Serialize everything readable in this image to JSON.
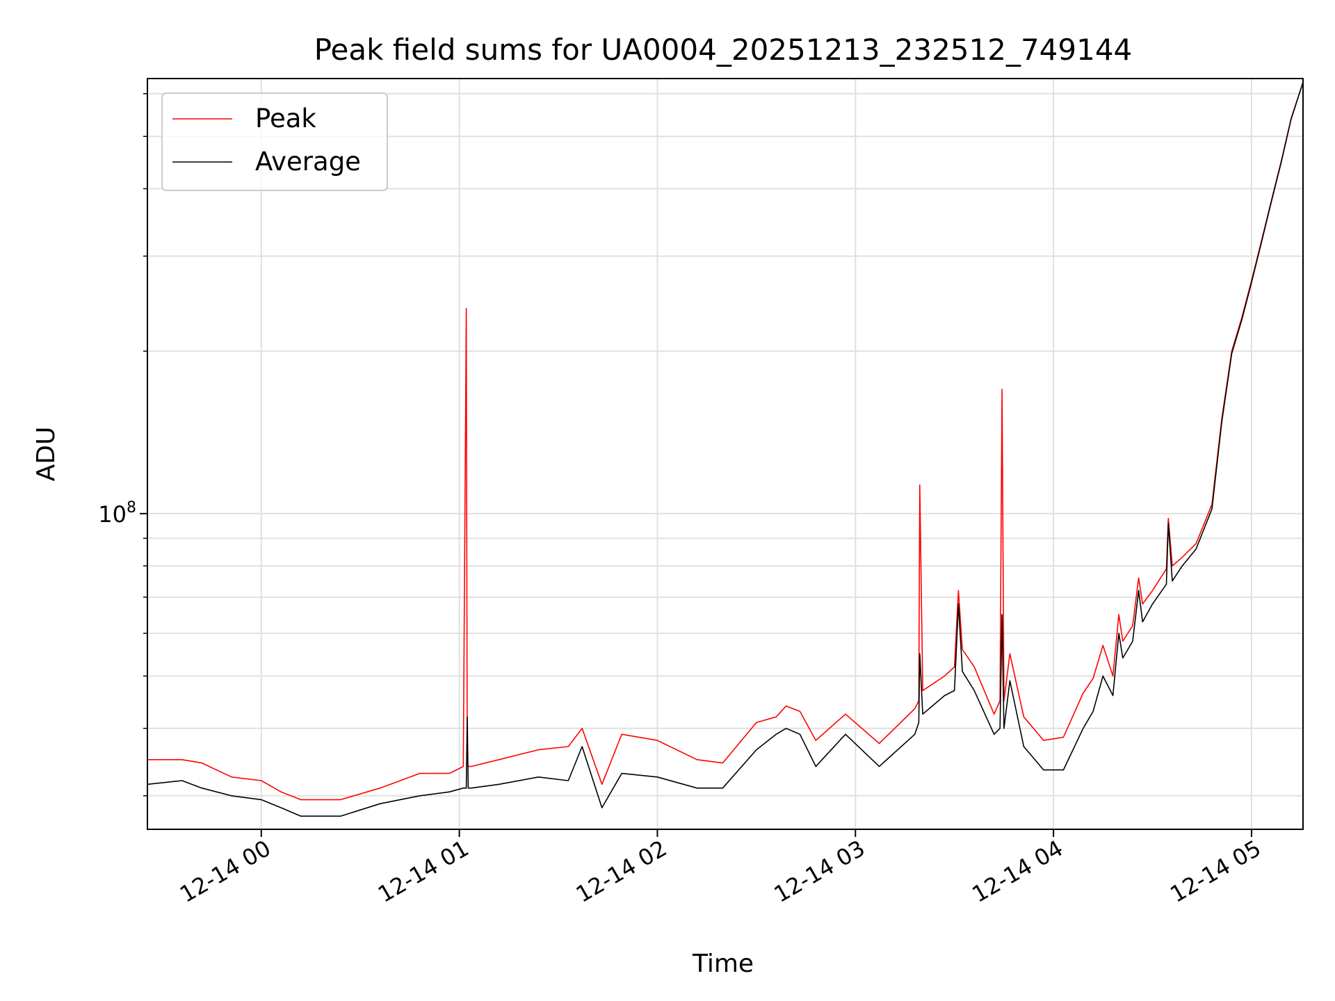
{
  "chart_data": {
    "type": "line",
    "title": "Peak field sums for UA0004_20251213_232512_749144",
    "xlabel": "Time",
    "ylabel": "ADU",
    "yscale": "log",
    "ylim": [
      26000000,
      640000000
    ],
    "xlim_hours_from_midnight": [
      -0.575,
      5.26
    ],
    "x_ticks": [
      {
        "hour": 0,
        "label": "12-14 00"
      },
      {
        "hour": 1,
        "label": "12-14 01"
      },
      {
        "hour": 2,
        "label": "12-14 02"
      },
      {
        "hour": 3,
        "label": "12-14 03"
      },
      {
        "hour": 4,
        "label": "12-14 04"
      },
      {
        "hour": 5,
        "label": "12-14 05"
      }
    ],
    "y_major_ticks": [
      {
        "value": 100000000,
        "base": "10",
        "exp": "8"
      }
    ],
    "y_minor_ticks": [
      30000000,
      40000000,
      50000000,
      60000000,
      70000000,
      80000000,
      90000000,
      200000000,
      300000000,
      400000000,
      500000000,
      600000000
    ],
    "grid": true,
    "legend_position": "upper-left",
    "series": [
      {
        "name": "Peak",
        "color": "#ff0000",
        "x_hours": [
          -0.575,
          -0.4,
          -0.3,
          -0.15,
          0.0,
          0.1,
          0.2,
          0.4,
          0.6,
          0.8,
          0.95,
          1.02,
          1.035,
          1.04,
          1.045,
          1.06,
          1.2,
          1.4,
          1.55,
          1.62,
          1.72,
          1.82,
          2.0,
          2.2,
          2.33,
          2.5,
          2.6,
          2.65,
          2.72,
          2.8,
          2.95,
          3.12,
          3.3,
          3.32,
          3.325,
          3.34,
          3.45,
          3.5,
          3.52,
          3.54,
          3.6,
          3.7,
          3.73,
          3.74,
          3.75,
          3.78,
          3.85,
          3.95,
          4.05,
          4.15,
          4.2,
          4.25,
          4.3,
          4.33,
          4.35,
          4.4,
          4.43,
          4.45,
          4.5,
          4.57,
          4.58,
          4.6,
          4.65,
          4.72,
          4.8,
          4.85,
          4.9,
          4.95,
          5.0,
          5.05,
          5.1,
          5.15,
          5.2,
          5.26
        ],
        "values": [
          35000000,
          35000000,
          34500000,
          32500000,
          32000000,
          30500000,
          29500000,
          29500000,
          31000000,
          33000000,
          33000000,
          34000000,
          240000000,
          34500000,
          34000000,
          34000000,
          35000000,
          36500000,
          37000000,
          40000000,
          31500000,
          39000000,
          38000000,
          35000000,
          34500000,
          41000000,
          42000000,
          44000000,
          43000000,
          38000000,
          42500000,
          37500000,
          43500000,
          45000000,
          113000000,
          47000000,
          50000000,
          52000000,
          72000000,
          56000000,
          52000000,
          42500000,
          45000000,
          170000000,
          45000000,
          55000000,
          42000000,
          38000000,
          38500000,
          46500000,
          49500000,
          57000000,
          50000000,
          65000000,
          58000000,
          62000000,
          76000000,
          68000000,
          72000000,
          79000000,
          98000000,
          80000000,
          83000000,
          88000000,
          104000000,
          150000000,
          200000000,
          230000000,
          270000000,
          320000000,
          380000000,
          450000000,
          540000000,
          630000000
        ]
      },
      {
        "name": "Average",
        "color": "#000000",
        "x_hours": [
          -0.575,
          -0.4,
          -0.3,
          -0.15,
          0.0,
          0.1,
          0.2,
          0.4,
          0.6,
          0.8,
          0.95,
          1.02,
          1.035,
          1.04,
          1.045,
          1.06,
          1.2,
          1.4,
          1.55,
          1.62,
          1.72,
          1.82,
          2.0,
          2.2,
          2.33,
          2.5,
          2.6,
          2.65,
          2.72,
          2.8,
          2.95,
          3.12,
          3.3,
          3.32,
          3.325,
          3.34,
          3.45,
          3.5,
          3.52,
          3.54,
          3.6,
          3.7,
          3.73,
          3.74,
          3.75,
          3.78,
          3.85,
          3.95,
          4.05,
          4.15,
          4.2,
          4.25,
          4.3,
          4.33,
          4.35,
          4.4,
          4.43,
          4.45,
          4.5,
          4.57,
          4.58,
          4.6,
          4.65,
          4.72,
          4.8,
          4.85,
          4.9,
          4.95,
          5.0,
          5.05,
          5.1,
          5.15,
          5.2,
          5.26
        ],
        "values": [
          31500000,
          32000000,
          31000000,
          30000000,
          29500000,
          28500000,
          27500000,
          27500000,
          29000000,
          30000000,
          30500000,
          31000000,
          31000000,
          42000000,
          31000000,
          31000000,
          31500000,
          32500000,
          32000000,
          37000000,
          28500000,
          33000000,
          32500000,
          31000000,
          31000000,
          36500000,
          39000000,
          40000000,
          39000000,
          34000000,
          39000000,
          34000000,
          39000000,
          41000000,
          55000000,
          42500000,
          46000000,
          47000000,
          68000000,
          51000000,
          47000000,
          39000000,
          40000000,
          65000000,
          40000000,
          49000000,
          37000000,
          33500000,
          33500000,
          40000000,
          43000000,
          50000000,
          46000000,
          60000000,
          54000000,
          58000000,
          72000000,
          63000000,
          68000000,
          74000000,
          96000000,
          75000000,
          80000000,
          86000000,
          102000000,
          148000000,
          198000000,
          228000000,
          268000000,
          318000000,
          378000000,
          448000000,
          538000000,
          630000000
        ]
      }
    ]
  }
}
